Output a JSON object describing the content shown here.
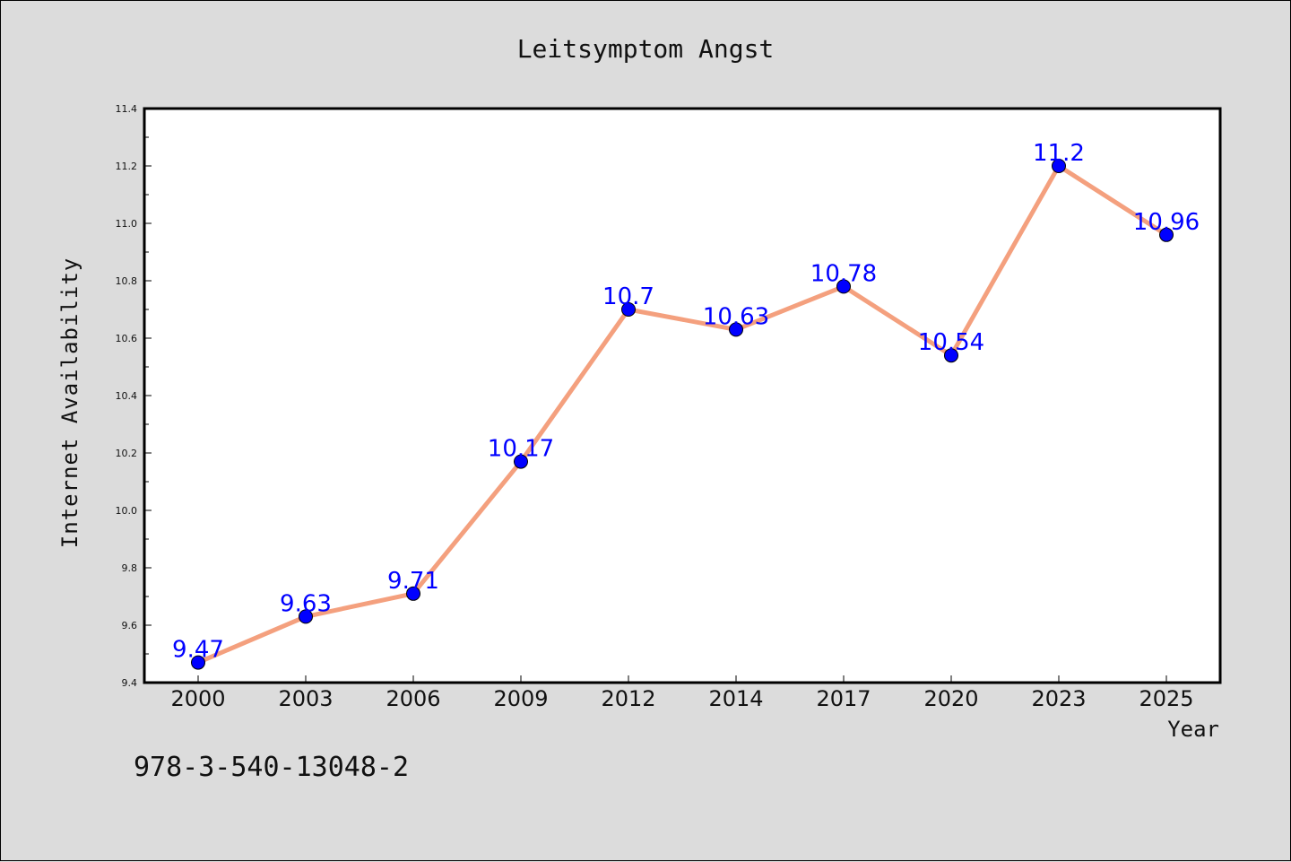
{
  "chart_data": {
    "type": "line",
    "title": "Leitsymptom Angst",
    "xlabel": "Year",
    "ylabel": "Internet Availability",
    "categories": [
      "2000",
      "2003",
      "2006",
      "2009",
      "2012",
      "2014",
      "2017",
      "2020",
      "2023",
      "2025"
    ],
    "series": [
      {
        "values": [
          9.47,
          9.63,
          9.71,
          10.17,
          10.7,
          10.63,
          10.78,
          10.54,
          11.2,
          10.96
        ],
        "labels": [
          "9.47",
          "9.63",
          "9.71",
          "10.17",
          "10.7",
          "10.63",
          "10.78",
          "10.54",
          "11.2",
          "10.96"
        ],
        "line_color": "#f4a07e",
        "marker_color": "#0000ff"
      }
    ],
    "ylim": [
      9.4,
      11.4
    ],
    "yticks": [
      "9.4",
      "9.6",
      "9.8",
      "10.0",
      "10.2",
      "10.4",
      "10.6",
      "10.8",
      "11.0",
      "11.2",
      "11.4"
    ],
    "grid": false,
    "legend": "none",
    "label_color": "#0000ff"
  },
  "footer": {
    "text": "978-3-540-13048-2"
  }
}
